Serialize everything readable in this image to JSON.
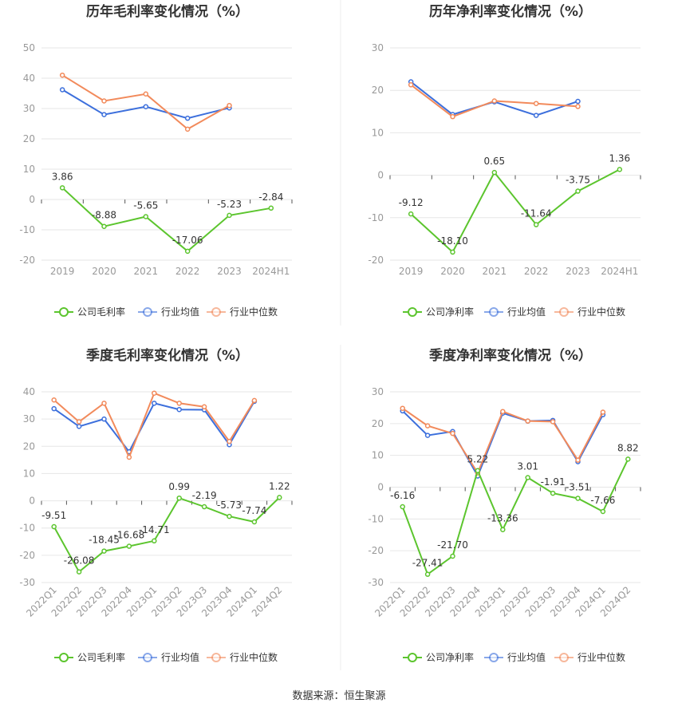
{
  "source_text": "数据来源：恒生聚源",
  "colors": {
    "company": "#5cc52e",
    "avg": "#3c6fdc",
    "median": "#f28a5b"
  },
  "chart_data": [
    {
      "type": "line",
      "title": "历年毛利率变化情况（%）",
      "categories": [
        "2019",
        "2020",
        "2021",
        "2022",
        "2023",
        "2024H1"
      ],
      "yticks": [
        50,
        40,
        30,
        20,
        10,
        0,
        -10,
        -20
      ],
      "ylim": [
        -20,
        50
      ],
      "series": [
        {
          "name": "公司毛利率",
          "key": "company",
          "values": [
            3.86,
            -8.88,
            -5.65,
            -17.06,
            -5.23,
            -2.84
          ],
          "labels": [
            "3.86",
            "-8.88",
            "-5.65",
            "-17.06",
            "-5.23",
            "-2.84"
          ]
        },
        {
          "name": "行业均值",
          "key": "avg",
          "values": [
            36.2,
            28.0,
            30.6,
            26.8,
            30.2,
            null
          ]
        },
        {
          "name": "行业中位数",
          "key": "median",
          "values": [
            41.0,
            32.5,
            34.8,
            23.2,
            31.0,
            null
          ]
        }
      ]
    },
    {
      "type": "line",
      "title": "历年净利率变化情况（%）",
      "categories": [
        "2019",
        "2020",
        "2021",
        "2022",
        "2023",
        "2024H1"
      ],
      "yticks": [
        30,
        20,
        10,
        0,
        -10,
        -20
      ],
      "ylim": [
        -20,
        30
      ],
      "series": [
        {
          "name": "公司净利率",
          "key": "company",
          "values": [
            -9.12,
            -18.1,
            0.65,
            -11.64,
            -3.75,
            1.36
          ],
          "labels": [
            "-9.12",
            "-18.10",
            "0.65",
            "-11.64",
            "-3.75",
            "1.36"
          ]
        },
        {
          "name": "行业均值",
          "key": "avg",
          "values": [
            22.0,
            14.3,
            17.3,
            14.1,
            17.4,
            null
          ]
        },
        {
          "name": "行业中位数",
          "key": "median",
          "values": [
            21.3,
            13.8,
            17.5,
            16.9,
            16.2,
            null
          ]
        }
      ]
    },
    {
      "type": "line",
      "title": "季度毛利率变化情况（%）",
      "categories": [
        "2022Q1",
        "2022Q2",
        "2022Q3",
        "2022Q4",
        "2023Q1",
        "2023Q2",
        "2023Q3",
        "2023Q4",
        "2024Q1",
        "2024Q2"
      ],
      "yticks": [
        40,
        30,
        20,
        10,
        0,
        -10,
        -20,
        -30
      ],
      "ylim": [
        -30,
        40
      ],
      "series": [
        {
          "name": "公司毛利率",
          "key": "company",
          "values": [
            -9.51,
            -26.08,
            -18.45,
            -16.68,
            -14.71,
            0.99,
            -2.19,
            -5.73,
            -7.74,
            1.22
          ],
          "labels": [
            "-9.51",
            "-26.08",
            "-18.45",
            "-16.68",
            "-14.71",
            "0.99",
            "-2.19",
            "-5.73",
            "-7.74",
            "1.22"
          ]
        },
        {
          "name": "行业均值",
          "key": "avg",
          "values": [
            33.8,
            27.3,
            30.0,
            18.0,
            35.8,
            33.5,
            33.4,
            20.6,
            36.5,
            null
          ]
        },
        {
          "name": "行业中位数",
          "key": "median",
          "values": [
            37.0,
            29.0,
            35.8,
            16.0,
            39.5,
            35.8,
            34.5,
            21.8,
            36.8,
            null
          ]
        }
      ]
    },
    {
      "type": "line",
      "title": "季度净利率变化情况（%）",
      "categories": [
        "2022Q1",
        "2022Q2",
        "2022Q3",
        "2022Q4",
        "2023Q1",
        "2023Q2",
        "2023Q3",
        "2023Q4",
        "2024Q1",
        "2024Q2"
      ],
      "yticks": [
        30,
        20,
        10,
        0,
        -10,
        -20,
        -30
      ],
      "ylim": [
        -30,
        30
      ],
      "series": [
        {
          "name": "公司净利率",
          "key": "company",
          "values": [
            -6.16,
            -27.41,
            -21.7,
            5.22,
            -13.36,
            3.01,
            -1.91,
            -3.51,
            -7.66,
            8.82
          ],
          "labels": [
            "-6.16",
            "-27.41",
            "-21.70",
            "5.22",
            "-13.36",
            "3.01",
            "-1.91",
            "-3.51",
            "-7.66",
            "8.82"
          ]
        },
        {
          "name": "行业均值",
          "key": "avg",
          "values": [
            24.0,
            16.3,
            17.5,
            3.5,
            23.3,
            20.8,
            21.0,
            8.0,
            22.8,
            null
          ]
        },
        {
          "name": "行业中位数",
          "key": "median",
          "values": [
            24.8,
            19.3,
            16.9,
            4.5,
            23.8,
            20.8,
            20.6,
            8.5,
            23.6,
            null
          ]
        }
      ]
    }
  ]
}
